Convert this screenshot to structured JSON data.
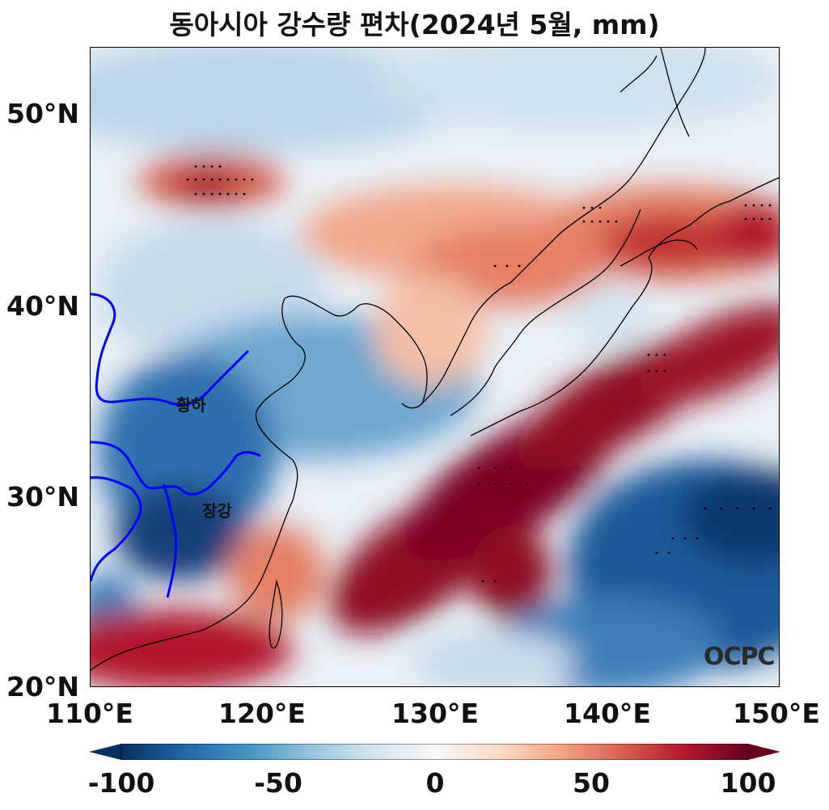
{
  "title": "동아시아 강수량 편차(2024년 5월, mm)",
  "lat_ticks": [
    "50°N",
    "40°N",
    "30°N",
    "20°N"
  ],
  "lon_ticks": [
    "110°E",
    "120°E",
    "130°E",
    "140°E",
    "150°E"
  ],
  "rivers": {
    "yellow": "황하",
    "yangtze": "장강"
  },
  "logo": "OCPC",
  "colorbar": {
    "ticks": [
      "-100",
      "-50",
      "0",
      "50",
      "100"
    ],
    "colors": [
      "#053061",
      "#2166ac",
      "#4393c3",
      "#92c5de",
      "#d1e5f0",
      "#f7f7f7",
      "#fddbc7",
      "#f4a582",
      "#d6604d",
      "#b2182b",
      "#67001f"
    ]
  },
  "extent": {
    "lon": [
      110,
      150
    ],
    "lat": [
      20,
      53.5
    ]
  },
  "river_color": "#0000ff"
}
